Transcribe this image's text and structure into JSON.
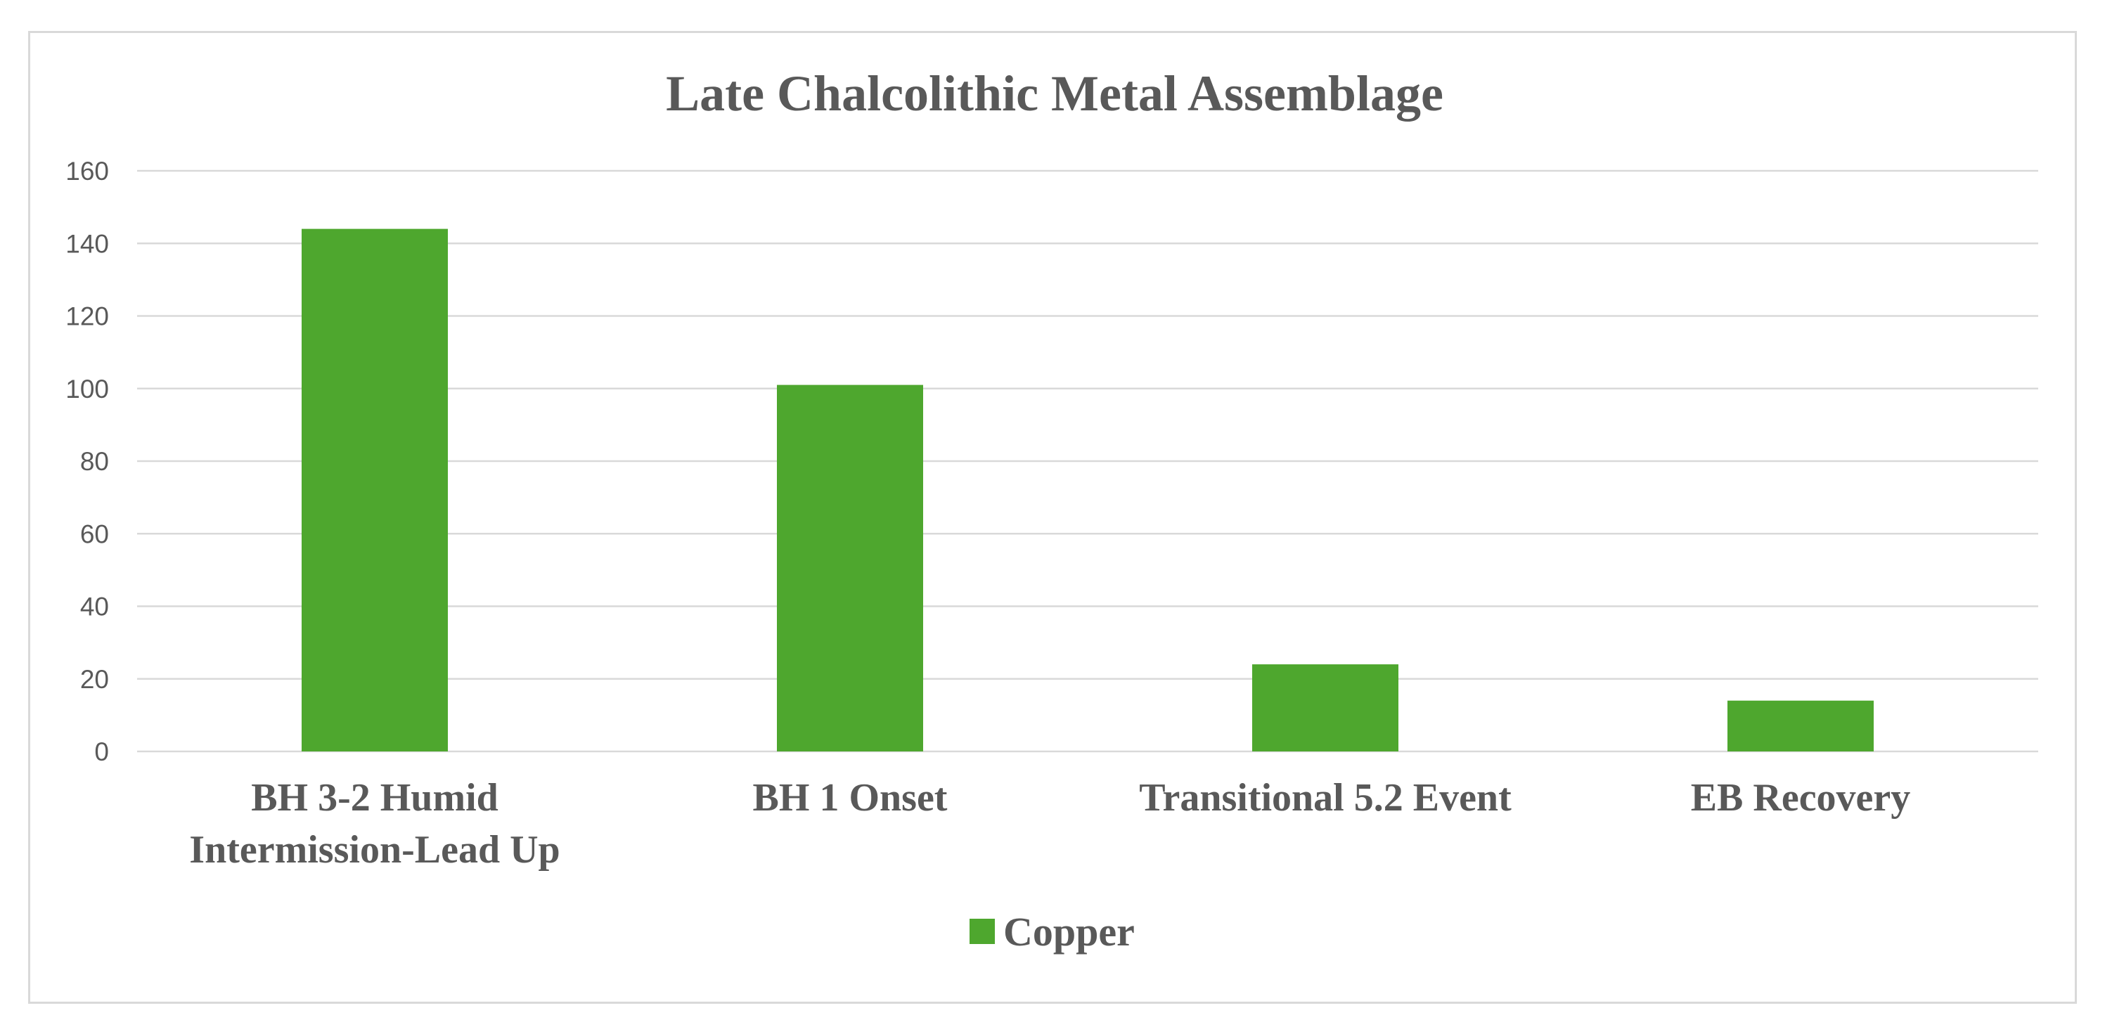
{
  "chart_data": {
    "type": "bar",
    "title": "Late Chalcolithic Metal Assemblage",
    "xlabel": "",
    "ylabel": "",
    "categories": [
      [
        "BH 3-2 Humid",
        "Intermission-Lead Up"
      ],
      [
        "BH 1 Onset"
      ],
      [
        "Transitional 5.2 Event"
      ],
      [
        "EB Recovery"
      ]
    ],
    "series": [
      {
        "name": "Copper",
        "color": "#4ea72e",
        "values": [
          144,
          101,
          24,
          14
        ]
      }
    ],
    "ylim": [
      0,
      160
    ],
    "yticks": [
      0,
      20,
      40,
      60,
      80,
      100,
      120,
      140,
      160
    ],
    "grid": true,
    "legend_position": "bottom"
  }
}
